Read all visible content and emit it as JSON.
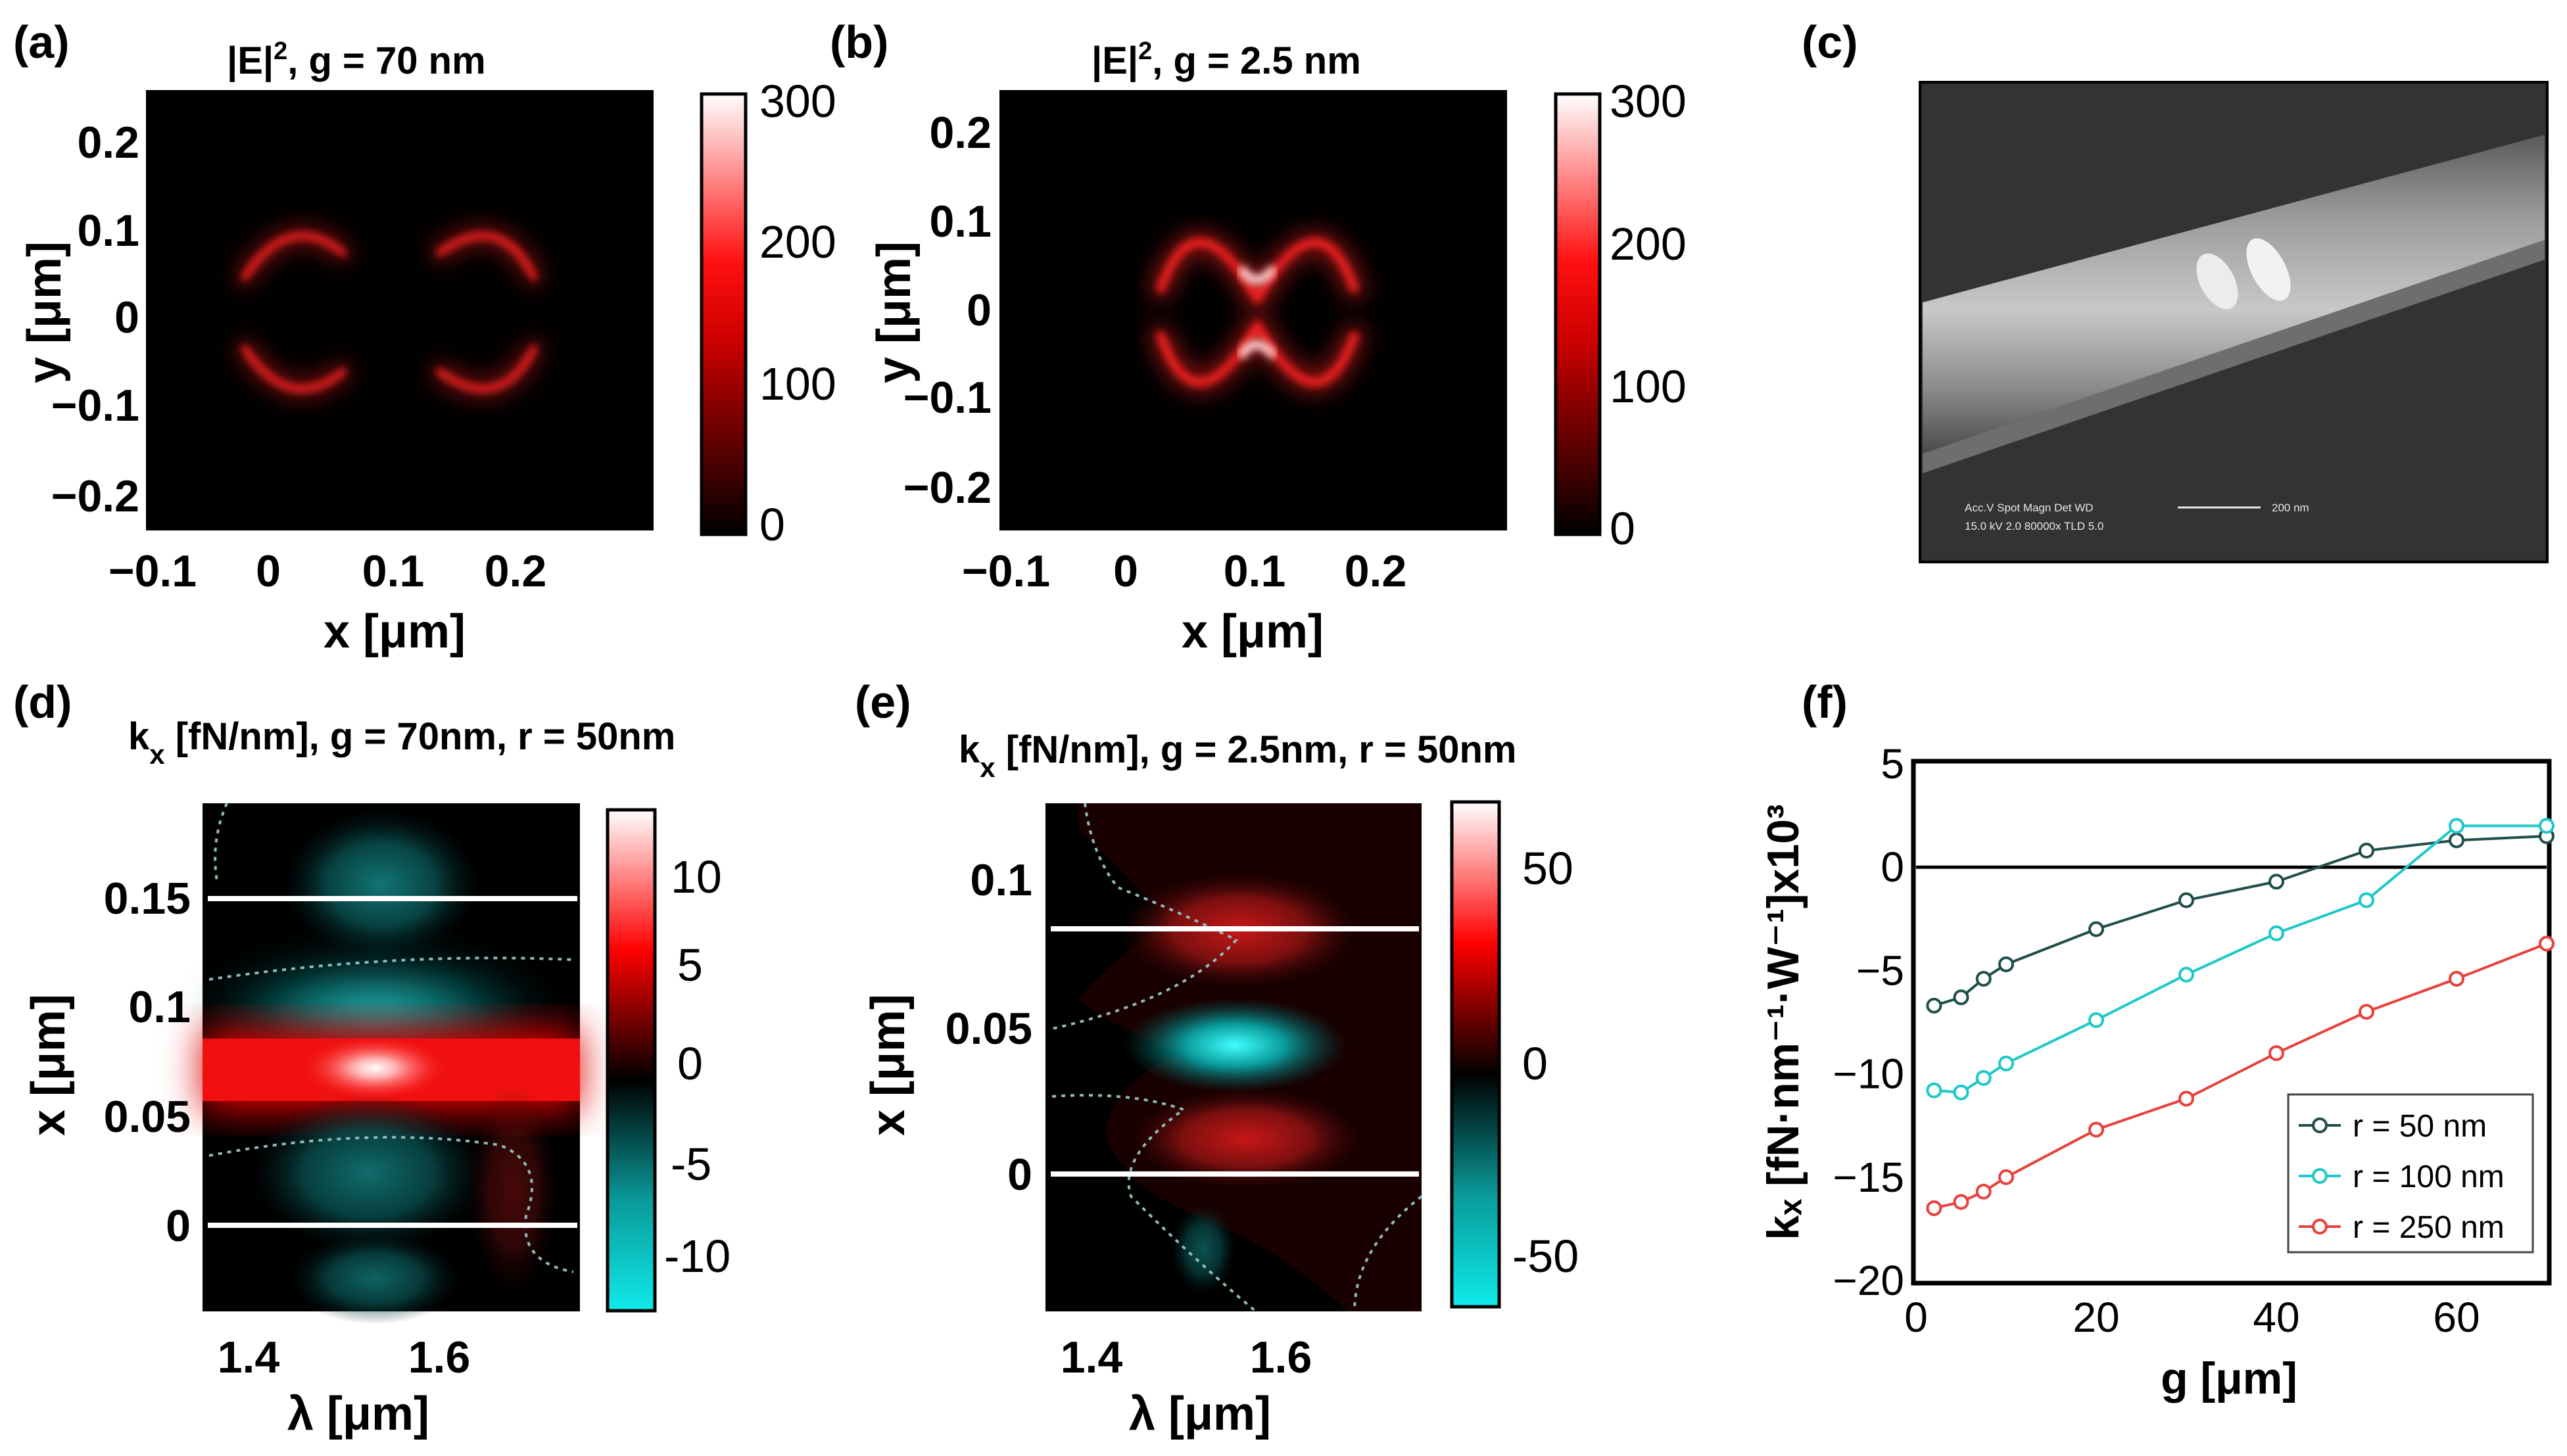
{
  "panel_labels": [
    "(a)",
    "(b)",
    "(c)",
    "(d)",
    "(e)",
    "(f)"
  ],
  "panel_a": {
    "title_main": "|E|",
    "title_sup": "2",
    "title_rest": ", g = 70 nm",
    "x_ticks": [
      "−0.1",
      "0",
      "0.1",
      "0.2"
    ],
    "y_ticks": [
      "0.2",
      "0.1",
      "0",
      "−0.1",
      "−0.2"
    ],
    "xlabel": "x [μm]",
    "ylabel": "y [μm]",
    "colorbar_ticks": [
      "300",
      "200",
      "100",
      "0"
    ],
    "colormap": [
      "#000000",
      "#ff0000",
      "#ffffff"
    ]
  },
  "panel_b": {
    "title_main": "|E|",
    "title_sup": "2",
    "title_rest": ", g = 2.5 nm",
    "x_ticks": [
      "−0.1",
      "0",
      "0.1",
      "0.2"
    ],
    "y_ticks": [
      "0.2",
      "0.1",
      "0",
      "−0.1",
      "−0.2"
    ],
    "xlabel": "x [μm]",
    "ylabel": "y [μm]",
    "colorbar_ticks": [
      "300",
      "200",
      "100",
      "0"
    ]
  },
  "panel_c": {
    "sem_line1": "Acc.V   Spot Magn    Det  WD",
    "sem_line2": "15.0 kV 2.0   80000x  TLD 5.0",
    "scale_bar": "200 nm"
  },
  "panel_d": {
    "title_k": "k",
    "title_sub": "x",
    "title_rest": " [fN/nm], g = 70nm, r = 50nm",
    "x_ticks": [
      "1.4",
      "1.6"
    ],
    "y_ticks": [
      "0.15",
      "0.1",
      "0.05",
      "0"
    ],
    "xlabel": "λ [μm]",
    "ylabel": "x [μm]",
    "colorbar_ticks": [
      "10",
      "5",
      "0",
      "-5",
      "-10"
    ],
    "colormap": [
      "#00ffff",
      "#000000",
      "#ff0000",
      "#ffffff"
    ]
  },
  "panel_e": {
    "title_k": "k",
    "title_sub": "x",
    "title_rest": " [fN/nm], g = 2.5nm, r = 50nm",
    "x_ticks": [
      "1.4",
      "1.6"
    ],
    "y_ticks": [
      "0.1",
      "0.05",
      "0"
    ],
    "xlabel": "λ [μm]",
    "ylabel": "x [μm]",
    "colorbar_ticks": [
      "50",
      "0",
      "-50"
    ]
  },
  "chart_data": {
    "type": "line",
    "title": "",
    "xlabel": "g [μm]",
    "ylabel": "kₓ [fN·nm⁻¹·W⁻¹]x10³",
    "xlim": [
      0,
      70
    ],
    "ylim": [
      -20,
      5
    ],
    "x_ticks": [
      "0",
      "20",
      "40",
      "60"
    ],
    "y_ticks": [
      "5",
      "0",
      "−5",
      "−10",
      "−15",
      "−20"
    ],
    "legend_position": "bottom-right",
    "series": [
      {
        "name": "r = 50 nm",
        "color": "#1f4f4a",
        "x": [
          2,
          5,
          7.5,
          10,
          20,
          30,
          40,
          50,
          60,
          70
        ],
        "y": [
          -6.7,
          -6.3,
          -5.4,
          -4.7,
          -3.0,
          -1.6,
          -0.7,
          0.8,
          1.3,
          1.5
        ]
      },
      {
        "name": "r = 100 nm",
        "color": "#1ec8c8",
        "x": [
          2,
          5,
          7.5,
          10,
          20,
          30,
          40,
          50,
          60,
          70
        ],
        "y": [
          -10.8,
          -10.9,
          -10.2,
          -9.5,
          -7.4,
          -5.2,
          -3.2,
          -1.6,
          2.0,
          2.0
        ]
      },
      {
        "name": "r = 250 nm",
        "color": "#e8413c",
        "x": [
          2,
          5,
          7.5,
          10,
          20,
          30,
          40,
          50,
          60,
          70
        ],
        "y": [
          -16.5,
          -16.2,
          -15.7,
          -15.0,
          -12.7,
          -11.2,
          -9.0,
          -7.0,
          -5.4,
          -3.7
        ]
      }
    ]
  }
}
